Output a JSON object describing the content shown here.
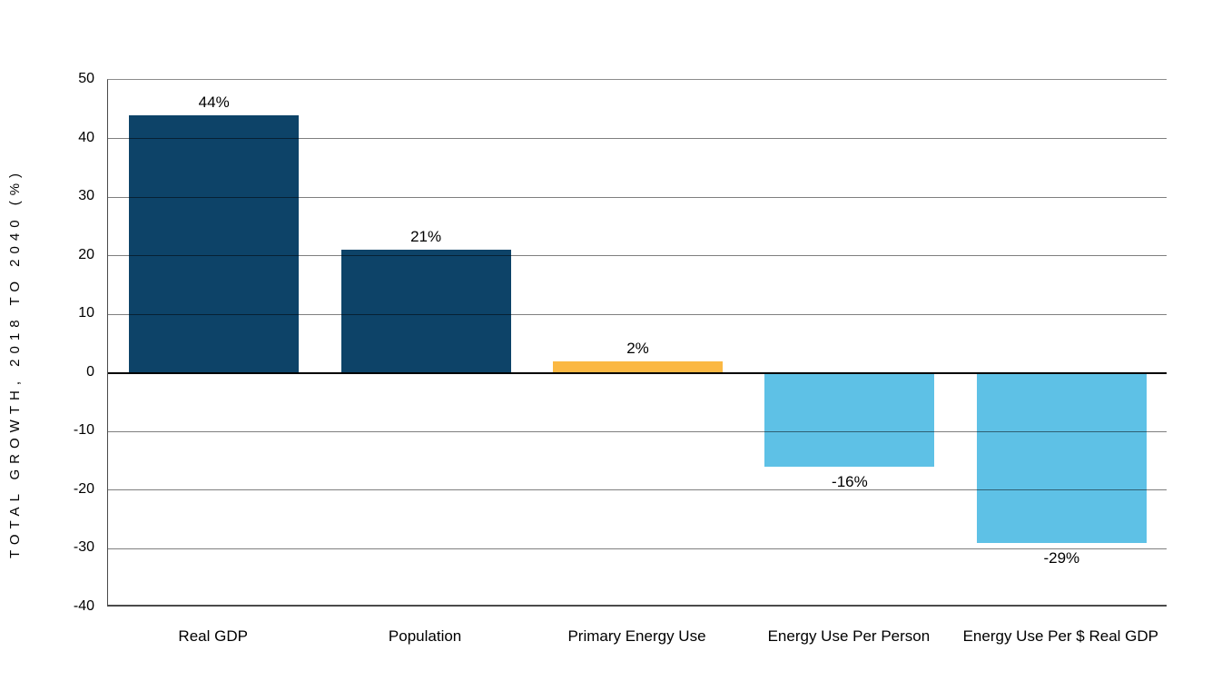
{
  "chart_data": {
    "type": "bar",
    "title": "",
    "categories": [
      "Real GDP",
      "Population",
      "Primary Energy Use",
      "Energy Use Per Person",
      "Energy Use Per $ Real GDP"
    ],
    "values": [
      44,
      21,
      2,
      -16,
      -29
    ],
    "data_labels": [
      "44%",
      "21%",
      "2%",
      "-16%",
      "-29%"
    ],
    "bar_colors": [
      "#0D4368",
      "#0D4368",
      "#FBB843",
      "#5EC1E6",
      "#5EC1E6"
    ],
    "xlabel": "",
    "ylabel": "TOTAL GROWTH, 2018 TO 2040 (%)",
    "ylim": [
      -40,
      50
    ],
    "yticks": [
      50,
      40,
      30,
      20,
      10,
      0,
      -10,
      -20,
      -30,
      -40
    ],
    "grid": "horizontal-over-bars",
    "legend": "none",
    "colors": {
      "background": "#FFFFFF",
      "gridline": "rgba(0,0,0,0.5)",
      "zero_line": "#000000",
      "axis_border": "#4A4A4A",
      "text": "#000000"
    }
  }
}
